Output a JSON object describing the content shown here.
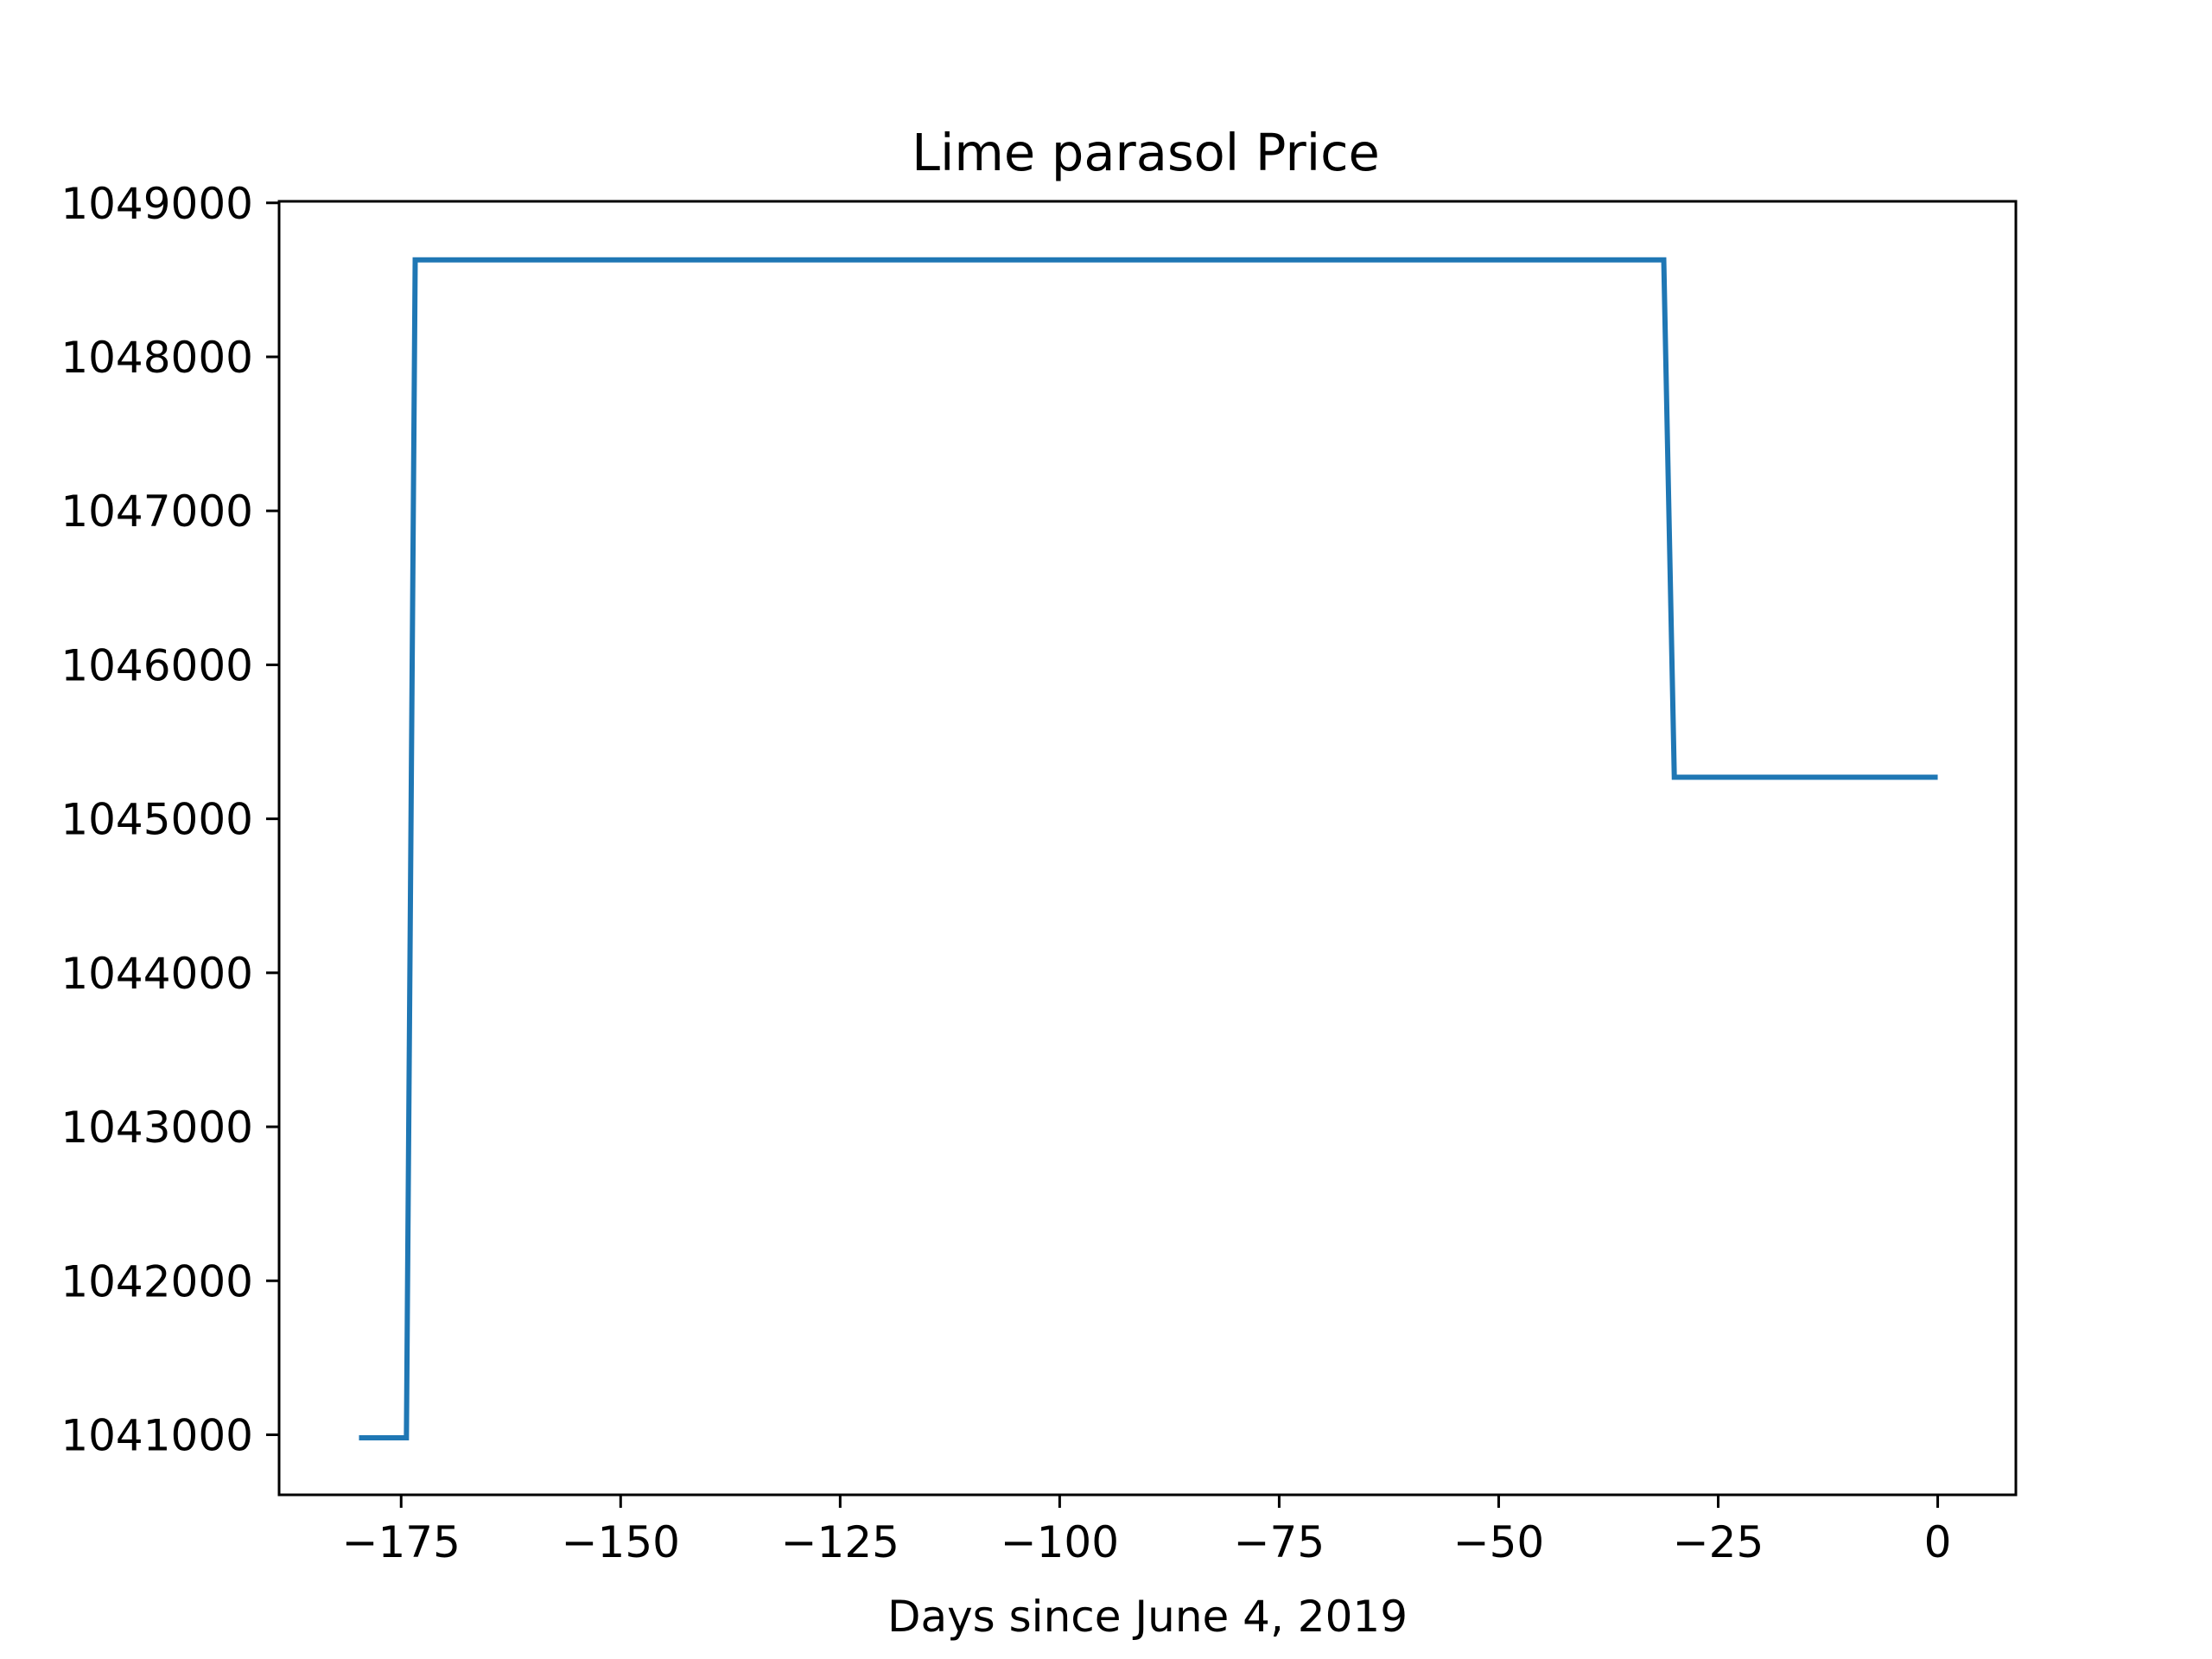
{
  "chart_data": {
    "type": "line",
    "title": "Lime parasol Price",
    "xlabel": "Days since June 4, 2019",
    "ylabel": "",
    "xlim": [
      -188.9,
      8.9
    ],
    "ylim": [
      1040610,
      1049010
    ],
    "xticks": [
      -175,
      -150,
      -125,
      -100,
      -75,
      -50,
      -25,
      0
    ],
    "xtick_labels": [
      "−175",
      "−150",
      "−125",
      "−100",
      "−75",
      "−50",
      "−25",
      "0"
    ],
    "yticks": [
      1041000,
      1042000,
      1043000,
      1044000,
      1045000,
      1046000,
      1047000,
      1048000,
      1049000
    ],
    "ytick_labels": [
      "1041000",
      "1042000",
      "1043000",
      "1044000",
      "1045000",
      "1046000",
      "1047000",
      "1048000",
      "1049000"
    ],
    "grid": false,
    "legend": "none",
    "series": [
      {
        "color": "#1f77b4",
        "x": [
          -179.8,
          -174.4,
          -173.4,
          -31.2,
          -30.0,
          0
        ],
        "y": [
          1040980,
          1040980,
          1048630,
          1048630,
          1045270,
          1045270
        ]
      }
    ]
  }
}
